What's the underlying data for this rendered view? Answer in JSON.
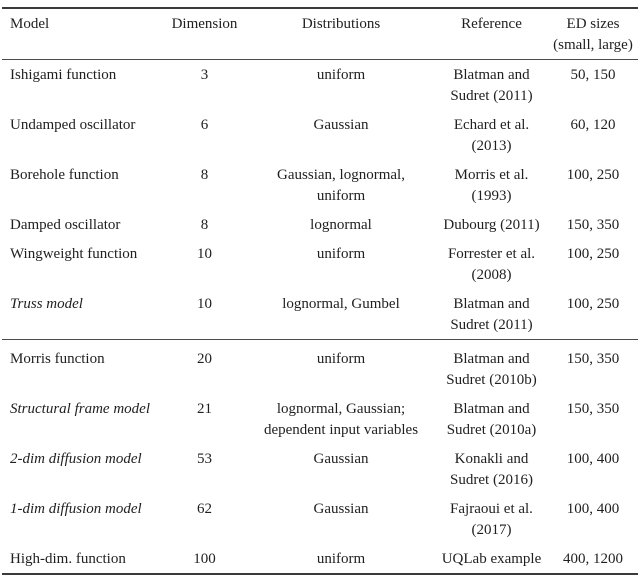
{
  "table": {
    "headers": {
      "model": "Model",
      "dimension": "Dimension",
      "distributions": "Distributions",
      "reference": "Reference",
      "ed_sizes": "ED sizes\n(small, large)"
    },
    "rows": [
      {
        "model": "Ishigami function",
        "dimension": "3",
        "distributions": "uniform",
        "reference": "Blatman and\nSudret (2011)",
        "ed_sizes": "50, 150"
      },
      {
        "model": "Undamped oscillator",
        "dimension": "6",
        "distributions": "Gaussian",
        "reference": "Echard et al.\n(2013)",
        "ed_sizes": "60, 120"
      },
      {
        "model": "Borehole function",
        "dimension": "8",
        "distributions": "Gaussian, lognormal,\nuniform",
        "reference": "Morris et al.\n(1993)",
        "ed_sizes": "100, 250"
      },
      {
        "model": "Damped oscillator",
        "dimension": "8",
        "distributions": "lognormal",
        "reference": "Dubourg (2011)",
        "ed_sizes": "150, 350"
      },
      {
        "model": "Wingweight function",
        "dimension": "10",
        "distributions": "uniform",
        "reference": "Forrester et al.\n(2008)",
        "ed_sizes": "100, 250"
      },
      {
        "model": "Truss model",
        "dimension": "10",
        "distributions": "lognormal, Gumbel",
        "reference": "Blatman and\nSudret (2011)",
        "ed_sizes": "100, 250"
      },
      {
        "model": "Morris function",
        "dimension": "20",
        "distributions": "uniform",
        "reference": "Blatman and\nSudret (2010b)",
        "ed_sizes": "150, 350"
      },
      {
        "model": "Structural frame model",
        "dimension": "21",
        "distributions": "lognormal, Gaussian;\ndependent input variables",
        "reference": "Blatman and\nSudret (2010a)",
        "ed_sizes": "150, 350"
      },
      {
        "model": "2-dim diffusion model",
        "dimension": "53",
        "distributions": "Gaussian",
        "reference": "Konakli and\nSudret (2016)",
        "ed_sizes": "100, 400"
      },
      {
        "model": "1-dim diffusion model",
        "dimension": "62",
        "distributions": "Gaussian",
        "reference": "Fajraoui et al.\n(2017)",
        "ed_sizes": "100, 400"
      },
      {
        "model": "High-dim. function",
        "dimension": "100",
        "distributions": "uniform",
        "reference": "UQLab example",
        "ed_sizes": "400, 1200"
      }
    ]
  }
}
